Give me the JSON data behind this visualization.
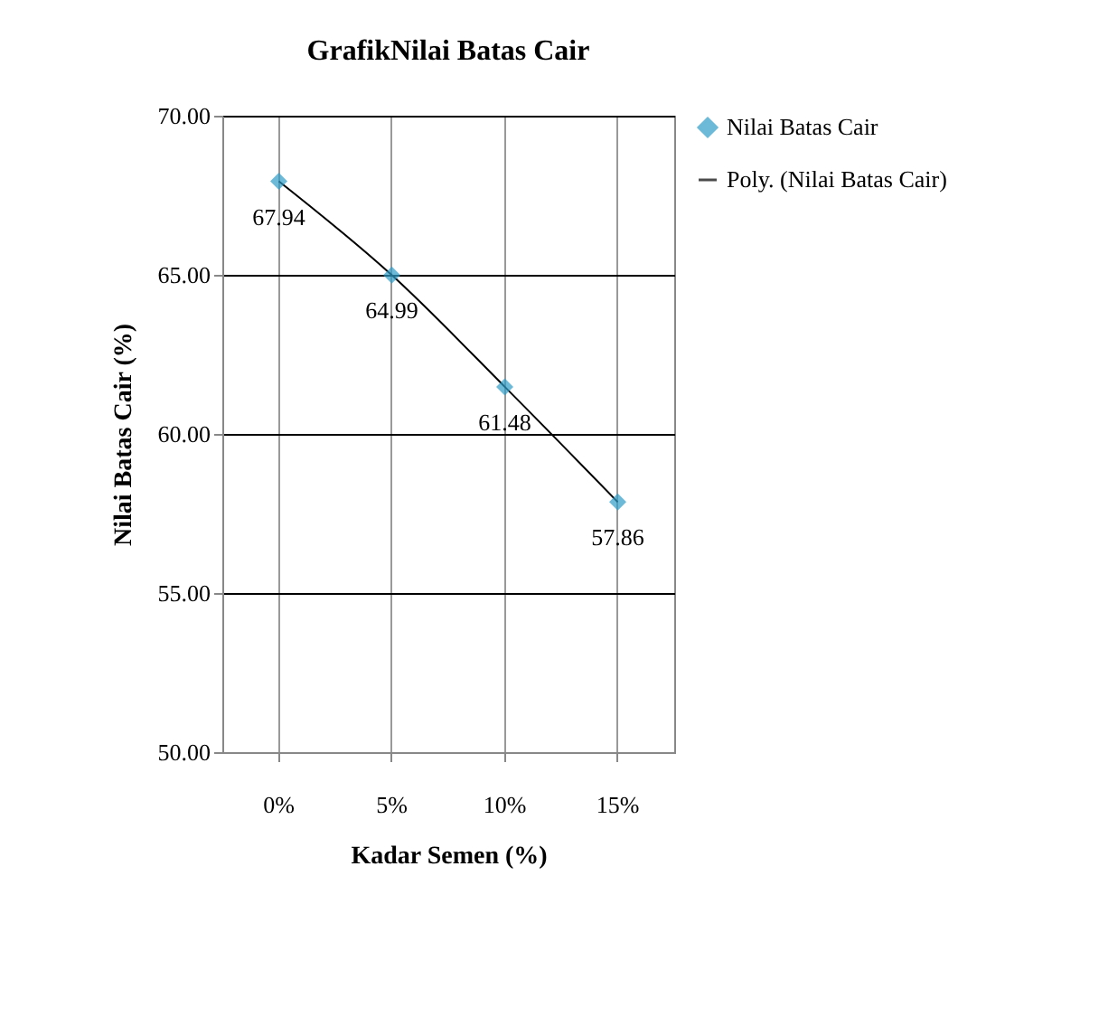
{
  "chart_data": {
    "type": "scatter",
    "title": "GrafikNilai  Batas Cair",
    "xlabel": "Kadar Semen (%)",
    "ylabel": "Nilai Batas Cair  (%)",
    "categories": [
      "0%",
      "5%",
      "10%",
      "15%"
    ],
    "series": [
      {
        "name": "Nilai Batas Cair",
        "type": "scatter",
        "color": "#2e9cc8",
        "marker": "diamond",
        "values": [
          67.94,
          64.99,
          61.48,
          57.86
        ],
        "data_labels": true
      },
      {
        "name": "Poly. (Nilai Batas Cair)",
        "type": "line",
        "color": "#000000",
        "x": [
          "0%",
          "5%",
          "10%",
          "15%"
        ],
        "values": [
          67.94,
          64.99,
          61.48,
          57.86
        ],
        "marker": "none",
        "line_style": "solid"
      }
    ],
    "ylim": [
      50,
      70
    ],
    "yticks": [
      {
        "value": 50,
        "label": "50.00"
      },
      {
        "value": 55,
        "label": "55.00"
      },
      {
        "value": 60,
        "label": "60.00"
      },
      {
        "value": 65,
        "label": "65.00"
      },
      {
        "value": 70,
        "label": "70.00"
      }
    ],
    "grid": true,
    "legend": "right"
  }
}
